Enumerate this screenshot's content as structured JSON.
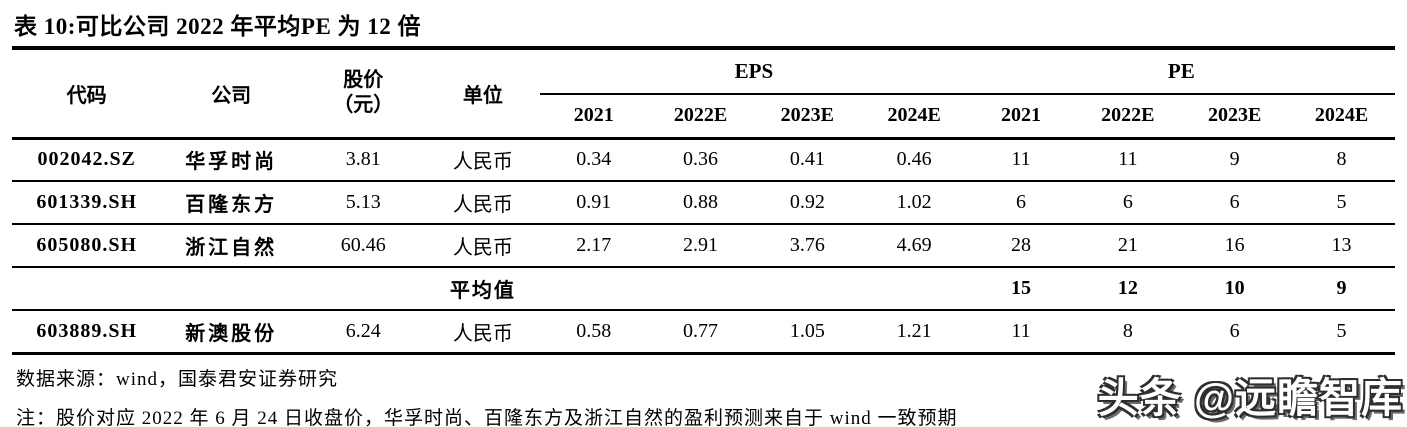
{
  "title": "表 10:可比公司 2022 年平均PE 为 12 倍",
  "table": {
    "headers": {
      "code": "代码",
      "company": "公司",
      "price_line1": "股价",
      "price_line2": "（元）",
      "unit": "单位",
      "eps_group": "EPS",
      "pe_group": "PE",
      "years": [
        "2021",
        "2022E",
        "2023E",
        "2024E"
      ]
    },
    "rows": [
      {
        "code": "002042.SZ",
        "company": "华孚时尚",
        "price": "3.81",
        "unit": "人民币",
        "eps": [
          "0.34",
          "0.36",
          "0.41",
          "0.46"
        ],
        "pe": [
          "11",
          "11",
          "9",
          "8"
        ]
      },
      {
        "code": "601339.SH",
        "company": "百隆东方",
        "price": "5.13",
        "unit": "人民币",
        "eps": [
          "0.91",
          "0.88",
          "0.92",
          "1.02"
        ],
        "pe": [
          "6",
          "6",
          "6",
          "5"
        ]
      },
      {
        "code": "605080.SH",
        "company": "浙江自然",
        "price": "60.46",
        "unit": "人民币",
        "eps": [
          "2.17",
          "2.91",
          "3.76",
          "4.69"
        ],
        "pe": [
          "28",
          "21",
          "16",
          "13"
        ]
      }
    ],
    "average": {
      "label": "平均值",
      "pe": [
        "15",
        "12",
        "10",
        "9"
      ]
    },
    "rows_after": [
      {
        "code": "603889.SH",
        "company": "新澳股份",
        "price": "6.24",
        "unit": "人民币",
        "eps": [
          "0.58",
          "0.77",
          "1.05",
          "1.21"
        ],
        "pe": [
          "11",
          "8",
          "6",
          "5"
        ]
      }
    ]
  },
  "source": "数据来源：wind，国泰君安证券研究",
  "note": "注：股价对应 2022 年 6 月 24 日收盘价，华孚时尚、百隆东方及浙江自然的盈利预测来自于 wind 一致预期",
  "watermark": "头条 @远瞻智库"
}
